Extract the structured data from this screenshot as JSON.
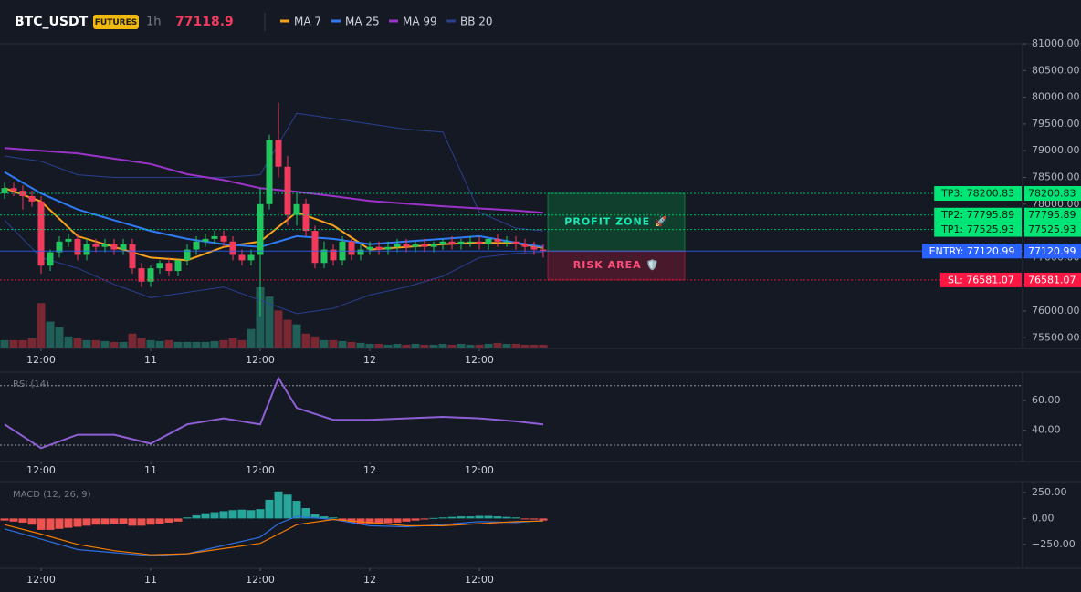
{
  "header": {
    "symbol": "BTC_USDT",
    "badge": "FUTURES",
    "interval": "1h"
  },
  "chart_data": [
    {
      "type": "candlestick",
      "xlim": [
        -0.5,
        111.5
      ],
      "xticks": [
        {
          "value": 4,
          "label": "12:00"
        },
        {
          "value": 16,
          "label": "11"
        },
        {
          "value": 28,
          "label": "12:00"
        },
        {
          "value": 40,
          "label": "12"
        },
        {
          "value": 52,
          "label": "12:00"
        }
      ],
      "ylim": [
        75300,
        81000
      ],
      "yticks": [
        {
          "value": 75500,
          "label": "75500.00"
        },
        {
          "value": 76000,
          "label": "76000.00"
        },
        {
          "value": 76500,
          "label": "76500.00"
        },
        {
          "value": 77000,
          "label": "77000.00"
        },
        {
          "value": 77500,
          "label": "77500.00"
        },
        {
          "value": 78000,
          "label": "78000.00"
        },
        {
          "value": 78500,
          "label": "78500.00"
        },
        {
          "value": 79000,
          "label": "79000.00"
        },
        {
          "value": 79500,
          "label": "79500.00"
        },
        {
          "value": 80000,
          "label": "80000.00"
        },
        {
          "value": 80500,
          "label": "80500.00"
        },
        {
          "value": 81000,
          "label": "81000.00"
        }
      ],
      "up_color": "#22c55e",
      "down_color": "#f23a5c",
      "open": [
        78200,
        78300,
        78250,
        78150,
        78050,
        76850,
        77100,
        77300,
        77350,
        77050,
        77250,
        77200,
        77250,
        77150,
        77250,
        76800,
        76550,
        76800,
        76900,
        76750,
        76950,
        77150,
        77300,
        77350,
        77400,
        77300,
        77050,
        76950,
        77050,
        78000,
        79200,
        78700,
        77800,
        78000,
        77500,
        76900,
        77150,
        76950,
        77300,
        77050,
        77150,
        77200,
        77150,
        77200,
        77250,
        77200,
        77250,
        77200,
        77250,
        77300,
        77250,
        77300,
        77300,
        77250,
        77350,
        77300,
        77300,
        77250,
        77200,
        77150
      ],
      "high": [
        78400,
        78400,
        78350,
        78250,
        78150,
        77150,
        77400,
        77450,
        77450,
        77350,
        77350,
        77350,
        77350,
        77350,
        77350,
        76900,
        76850,
        76950,
        77000,
        76950,
        77250,
        77400,
        77450,
        77500,
        77500,
        77400,
        77150,
        77150,
        78300,
        79300,
        79900,
        78900,
        78200,
        78100,
        77600,
        77300,
        77250,
        77400,
        77350,
        77250,
        77300,
        77300,
        77300,
        77350,
        77350,
        77300,
        77350,
        77300,
        77350,
        77400,
        77350,
        77400,
        77400,
        77350,
        77450,
        77400,
        77400,
        77350,
        77300,
        77250
      ],
      "low": [
        78100,
        78150,
        77900,
        77950,
        76700,
        76750,
        77000,
        77200,
        76950,
        76950,
        77100,
        77100,
        77050,
        77050,
        76700,
        76450,
        76450,
        76700,
        76650,
        76650,
        76850,
        77050,
        77200,
        77250,
        77200,
        76950,
        76850,
        76850,
        75900,
        77900,
        78500,
        77600,
        77600,
        77400,
        76800,
        76800,
        76850,
        76850,
        76950,
        76950,
        77050,
        77050,
        77050,
        77100,
        77100,
        77100,
        77100,
        77100,
        77150,
        77150,
        77150,
        77200,
        77150,
        77150,
        77200,
        77200,
        77150,
        77100,
        77050,
        77000
      ],
      "close": [
        78300,
        78250,
        78150,
        78050,
        76850,
        77100,
        77300,
        77350,
        77050,
        77250,
        77200,
        77250,
        77150,
        77250,
        76800,
        76550,
        76800,
        76900,
        76750,
        76950,
        77150,
        77300,
        77350,
        77400,
        77300,
        77050,
        76950,
        77050,
        78000,
        79200,
        78700,
        77800,
        78000,
        77500,
        76900,
        77150,
        76950,
        77300,
        77050,
        77150,
        77200,
        77150,
        77200,
        77250,
        77200,
        77250,
        77200,
        77250,
        77300,
        77250,
        77300,
        77300,
        77250,
        77350,
        77300,
        77300,
        77250,
        77200,
        77150,
        77118.9
      ],
      "volume": [
        8,
        8,
        8,
        10,
        48,
        28,
        22,
        12,
        10,
        8,
        8,
        7,
        6,
        6,
        15,
        10,
        8,
        7,
        8,
        6,
        6,
        6,
        6,
        7,
        8,
        10,
        8,
        20,
        65,
        55,
        40,
        30,
        25,
        15,
        12,
        8,
        8,
        7,
        6,
        5,
        4,
        4,
        3,
        4,
        3,
        4,
        3,
        3,
        4,
        3,
        4,
        3,
        3,
        4,
        5,
        4,
        4,
        3,
        3,
        3
      ],
      "series": [
        {
          "name": "MA 7",
          "color": "#f7a21b",
          "x": [
            0,
            4,
            8,
            12,
            16,
            20,
            24,
            28,
            32,
            36,
            40,
            44,
            48,
            52,
            56,
            59
          ],
          "values": [
            78300,
            78050,
            77400,
            77200,
            77000,
            76950,
            77200,
            77300,
            77850,
            77600,
            77150,
            77200,
            77250,
            77280,
            77270,
            77180
          ]
        },
        {
          "name": "MA 25",
          "color": "#2f7bf5",
          "x": [
            0,
            4,
            8,
            12,
            16,
            20,
            24,
            28,
            32,
            36,
            40,
            44,
            48,
            52,
            56,
            59
          ],
          "values": [
            78600,
            78200,
            77900,
            77700,
            77500,
            77350,
            77250,
            77200,
            77400,
            77350,
            77250,
            77300,
            77350,
            77400,
            77280,
            77200
          ]
        },
        {
          "name": "MA 99",
          "color": "#9c33c9",
          "x": [
            0,
            4,
            8,
            12,
            16,
            20,
            24,
            28,
            32,
            36,
            40,
            44,
            48,
            52,
            56,
            59
          ],
          "values": [
            79050,
            79000,
            78950,
            78850,
            78750,
            78560,
            78450,
            78300,
            78230,
            78150,
            78060,
            78010,
            77960,
            77920,
            77880,
            77840
          ]
        },
        {
          "name": "BB 20",
          "color": "#2a3f8f",
          "x": [
            0,
            4,
            8,
            12,
            16,
            20,
            24,
            28,
            32,
            36,
            40,
            44,
            48,
            52,
            56,
            59
          ],
          "upper": [
            78900,
            78800,
            78550,
            78500,
            78500,
            78500,
            78500,
            78550,
            79700,
            79600,
            79500,
            79400,
            79350,
            77850,
            77550,
            77500
          ],
          "lower": [
            77700,
            77000,
            76800,
            76500,
            76250,
            76350,
            76450,
            76200,
            75950,
            76050,
            76300,
            76450,
            76650,
            77000,
            77080,
            77100
          ]
        }
      ],
      "levels": [
        {
          "label": "TP3: 78200.83",
          "value": 78200.83,
          "color": "#00e676",
          "text_color": "#0b1a10"
        },
        {
          "label": "TP2: 77795.89",
          "value": 77795.89,
          "color": "#00e676",
          "text_color": "#0b1a10"
        },
        {
          "label": "TP1: 77525.93",
          "value": 77525.93,
          "color": "#00e676",
          "text_color": "#0b1a10"
        },
        {
          "label": "ENTRY: 77120.99",
          "value": 77120.99,
          "color": "#2962ff",
          "text_color": "#ffffff"
        },
        {
          "label": "SL: 76581.07",
          "value": 76581.07,
          "color": "#ff1744",
          "text_color": "#ffffff"
        }
      ],
      "zones": [
        {
          "label": "PROFIT ZONE 🚀",
          "color": "#00c853",
          "text_color": "#1de9b6"
        },
        {
          "label": "RISK AREA 🛡️",
          "color": "#ff1744",
          "text_color": "#ff4f7b"
        }
      ]
    },
    {
      "type": "line",
      "title": "RSI (14)",
      "color": "#8f5fd6",
      "xlim": [
        -0.5,
        111.5
      ],
      "xticks": [
        {
          "value": 4,
          "label": "12:00"
        },
        {
          "value": 16,
          "label": "11"
        },
        {
          "value": 28,
          "label": "12:00"
        },
        {
          "value": 40,
          "label": "12"
        },
        {
          "value": 52,
          "label": "12:00"
        }
      ],
      "ylim": [
        19,
        79
      ],
      "yticks": [
        {
          "value": 40,
          "label": "40.00"
        },
        {
          "value": 60,
          "label": "60.00"
        }
      ],
      "bands": [
        30,
        70
      ],
      "x": [
        0,
        4,
        8,
        12,
        16,
        20,
        24,
        28,
        30,
        32,
        36,
        40,
        44,
        48,
        52,
        56,
        59
      ],
      "values": [
        44,
        28,
        37,
        37,
        31,
        44,
        48,
        44,
        75,
        55,
        47,
        47,
        48,
        49,
        48,
        46,
        44
      ]
    },
    {
      "type": "macd",
      "title": "MACD (12, 26, 9)",
      "xlim": [
        -0.5,
        111.5
      ],
      "xticks": [
        {
          "value": 4,
          "label": "12:00"
        },
        {
          "value": 16,
          "label": "11"
        },
        {
          "value": 28,
          "label": "12:00"
        },
        {
          "value": 40,
          "label": "12"
        },
        {
          "value": 52,
          "label": "12:00"
        }
      ],
      "ylim": [
        -480,
        355
      ],
      "yticks": [
        {
          "value": -250,
          "label": "−250.00"
        },
        {
          "value": 0,
          "label": "0.00"
        },
        {
          "value": 250,
          "label": "250.00"
        }
      ],
      "up_color": "#26a69a",
      "down_color": "#ef5350",
      "histogram": [
        -20,
        -30,
        -40,
        -60,
        -110,
        -110,
        -100,
        -90,
        -80,
        -70,
        -60,
        -60,
        -50,
        -50,
        -70,
        -70,
        -60,
        -50,
        -40,
        -30,
        10,
        30,
        50,
        60,
        70,
        80,
        85,
        80,
        90,
        180,
        260,
        230,
        170,
        100,
        40,
        20,
        10,
        -20,
        -40,
        -50,
        -50,
        -50,
        -45,
        -40,
        -30,
        -20,
        -10,
        5,
        10,
        15,
        20,
        20,
        25,
        25,
        20,
        15,
        10,
        -5,
        -10,
        -20
      ],
      "macd": {
        "color": "#2f6fe0",
        "x": [
          0,
          4,
          8,
          12,
          16,
          20,
          24,
          28,
          30,
          32,
          36,
          40,
          44,
          48,
          52,
          56,
          59
        ],
        "values": [
          -100,
          -200,
          -300,
          -330,
          -360,
          -340,
          -260,
          -180,
          -50,
          20,
          -10,
          -70,
          -80,
          -60,
          -30,
          -40,
          -20
        ]
      },
      "signal": {
        "color": "#f57c00",
        "x": [
          0,
          4,
          8,
          12,
          16,
          20,
          24,
          28,
          30,
          32,
          36,
          40,
          44,
          48,
          52,
          56,
          59
        ],
        "values": [
          -60,
          -150,
          -250,
          -310,
          -350,
          -340,
          -290,
          -240,
          -150,
          -60,
          -10,
          -40,
          -70,
          -70,
          -50,
          -30,
          -25
        ]
      }
    }
  ]
}
